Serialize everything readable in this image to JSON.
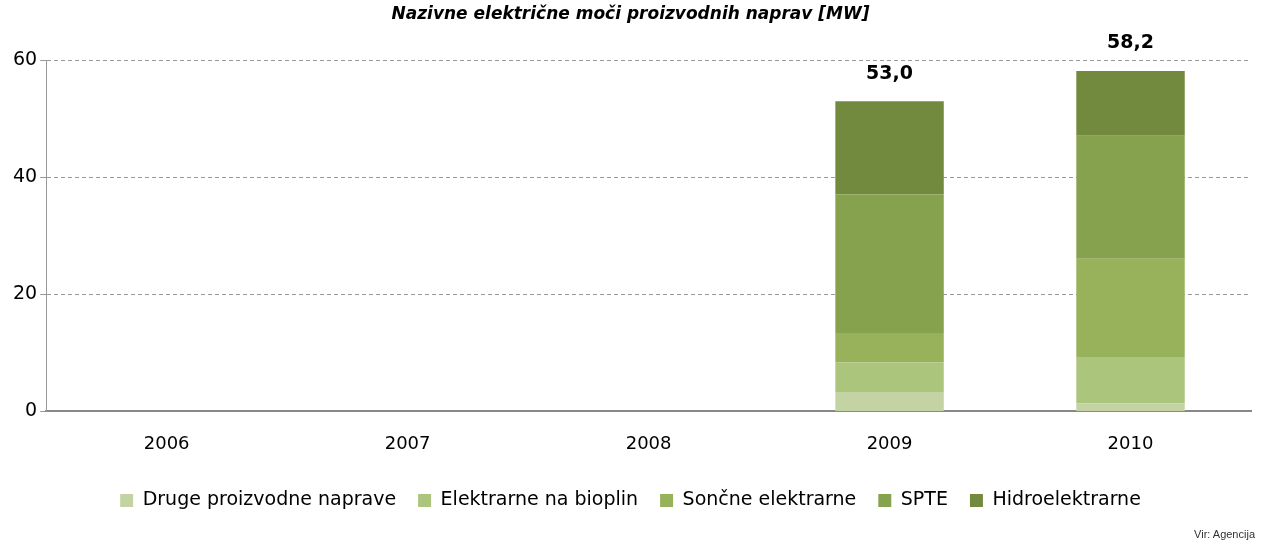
{
  "chart_data": {
    "type": "bar",
    "title": "Nazivne električne moči proizvodnih naprav [MW]",
    "categories": [
      "2006",
      "2007",
      "2008",
      "2009",
      "2010"
    ],
    "stacked": true,
    "series": [
      {
        "name": "Druge proizvodne naprave",
        "color": "#c3d3a3",
        "values": [
          null,
          null,
          null,
          3.3,
          1.4
        ]
      },
      {
        "name": "Elektrarne na bioplin",
        "color": "#abc57c",
        "values": [
          null,
          null,
          null,
          5.1,
          7.9
        ]
      },
      {
        "name": "Sončne elektrarne",
        "color": "#97b25a",
        "values": [
          null,
          null,
          null,
          5.0,
          16.8
        ]
      },
      {
        "name": "SPTE",
        "color": "#87a24e",
        "values": [
          null,
          null,
          null,
          23.7,
          21.0
        ]
      },
      {
        "name": "Hidroelektrarne",
        "color": "#728a3e",
        "values": [
          null,
          null,
          null,
          15.9,
          11.1
        ]
      }
    ],
    "totals": [
      null,
      null,
      null,
      "53,0",
      "58,2"
    ],
    "ylim": [
      0,
      60
    ],
    "yticks": [
      0,
      20,
      40,
      60
    ],
    "grid": "y",
    "legend": "bottom",
    "annotations": [
      "Vir: Agencija"
    ]
  }
}
